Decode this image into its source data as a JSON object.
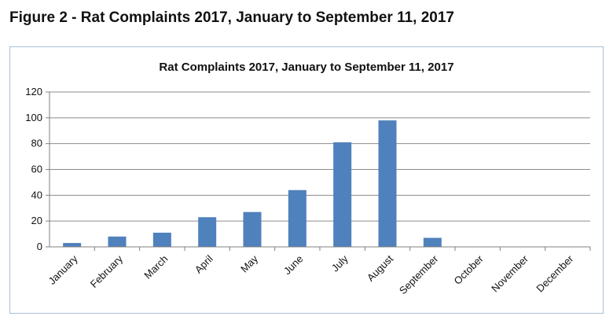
{
  "figure_heading": "Figure 2 - Rat Complaints 2017, January to September 11, 2017",
  "chart_data": {
    "type": "bar",
    "title": "Rat Complaints 2017, January to September 11, 2017",
    "categories": [
      "January",
      "February",
      "March",
      "April",
      "May",
      "June",
      "July",
      "August",
      "September",
      "October",
      "November",
      "December"
    ],
    "values": [
      3,
      8,
      11,
      23,
      27,
      44,
      81,
      98,
      7,
      null,
      null,
      null
    ],
    "xlabel": "",
    "ylabel": "",
    "ylim": [
      0,
      120
    ],
    "yticks": [
      0,
      20,
      40,
      60,
      80,
      100,
      120
    ],
    "grid": true,
    "legend": "none",
    "colors": {
      "bar": "#4f81bd",
      "grid": "#8c8c8c",
      "frame": "#a9bfd6"
    }
  }
}
